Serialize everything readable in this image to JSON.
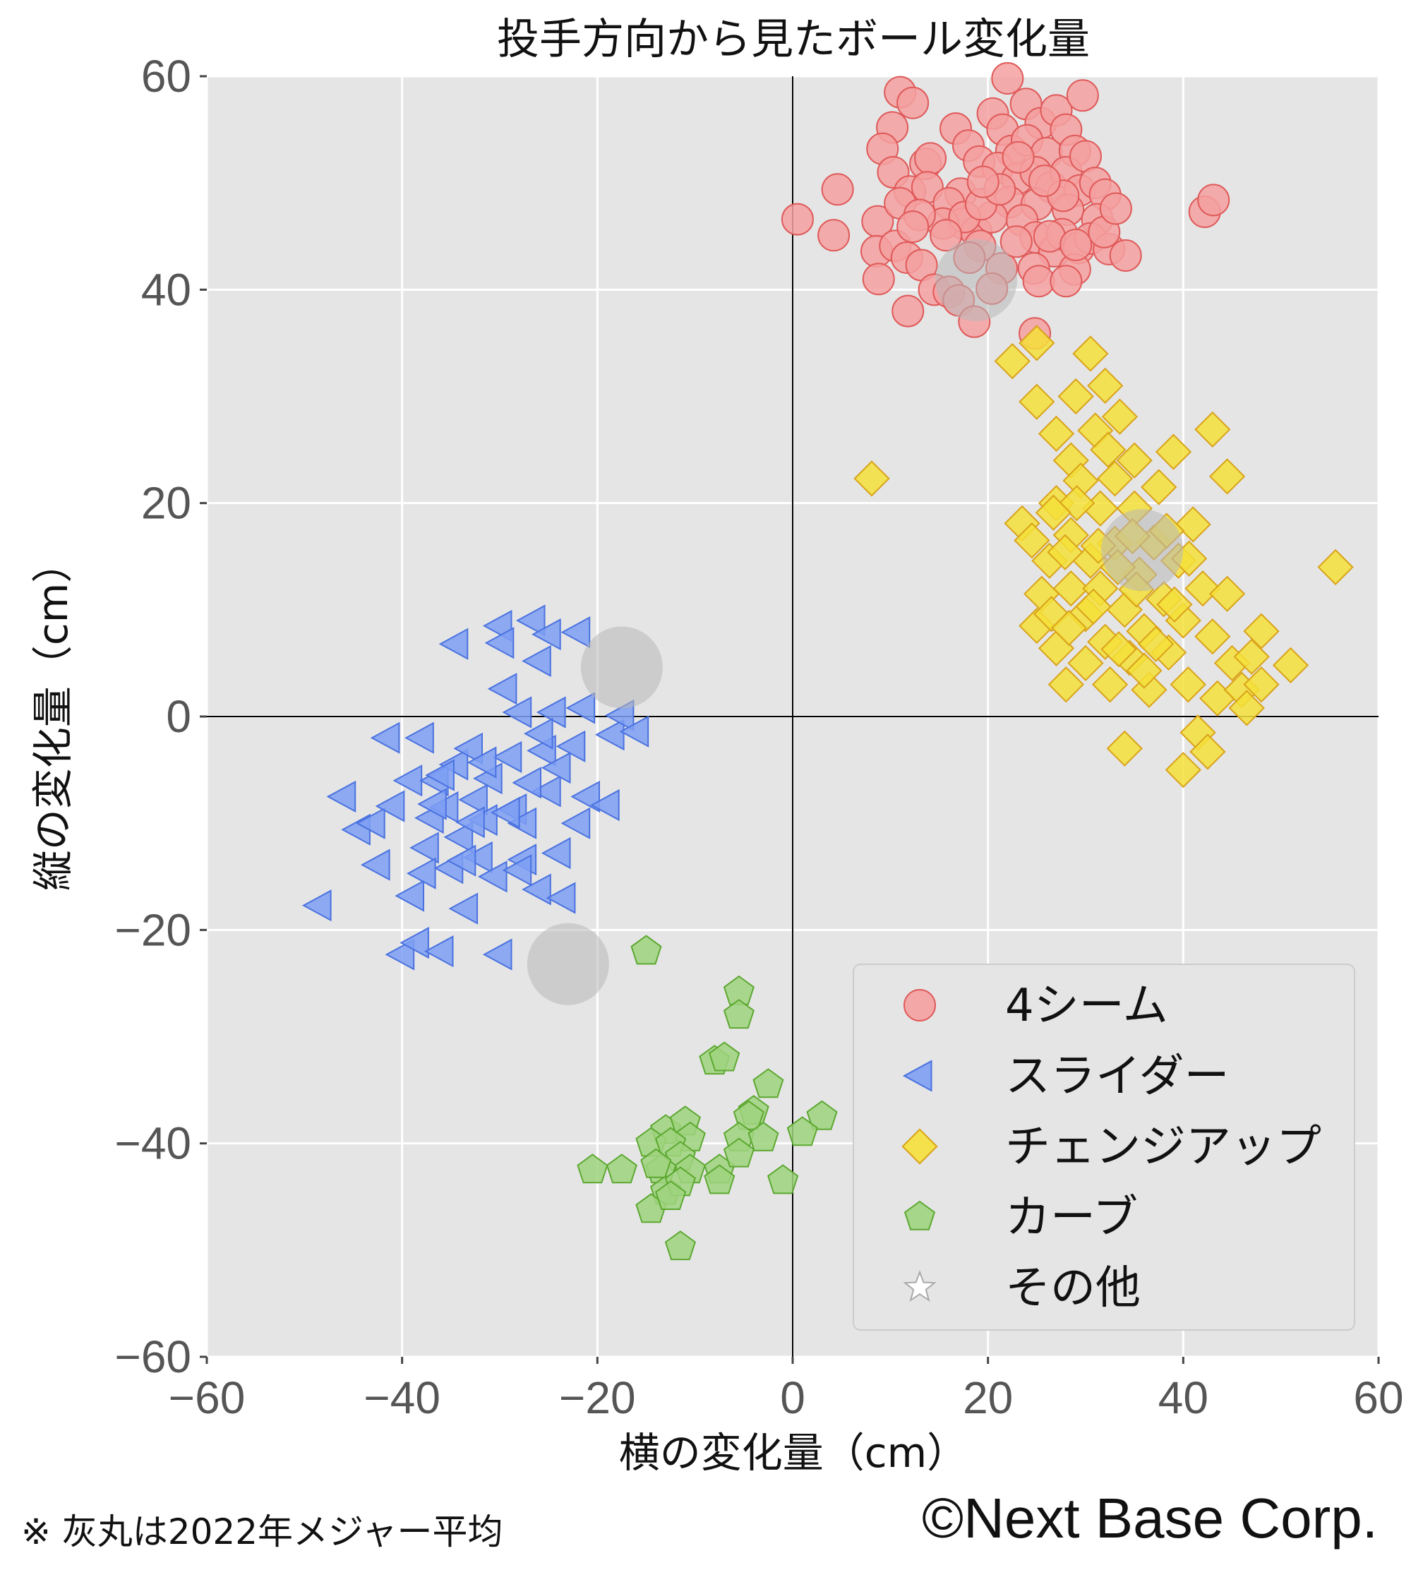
{
  "chart_data": {
    "type": "scatter",
    "title": "投手方向から見たボール変化量",
    "xlabel": "横の変化量（cm）",
    "ylabel": "縦の変化量（cm）",
    "xlim": [
      -60,
      60
    ],
    "ylim": [
      -60,
      60
    ],
    "x_ticks": [
      "−60",
      "−40",
      "−20",
      "0",
      "20",
      "40",
      "60"
    ],
    "y_ticks": [
      "−60",
      "−40",
      "−20",
      "0",
      "20",
      "40",
      "60"
    ],
    "grid": true,
    "legend_position": "lower-right",
    "series": [
      {
        "name": "4シーム",
        "marker": "circle",
        "color": "#f4a0a0",
        "edge": "#e05a5a",
        "points": [
          [
            0.5,
            46.6
          ],
          [
            4.2,
            45.1
          ],
          [
            4.6,
            49.4
          ],
          [
            8.7,
            46.4
          ],
          [
            8.6,
            43.6
          ],
          [
            8.8,
            41.0
          ],
          [
            11.0,
            58.5
          ],
          [
            12.3,
            57.5
          ],
          [
            10.2,
            55.2
          ],
          [
            9.2,
            53.2
          ],
          [
            10.3,
            51.0
          ],
          [
            12.0,
            49.2
          ],
          [
            13.6,
            51.8
          ],
          [
            14.1,
            52.3
          ],
          [
            13.8,
            49.6
          ],
          [
            11.0,
            48.1
          ],
          [
            10.5,
            44.1
          ],
          [
            11.7,
            43.0
          ],
          [
            13.2,
            42.3
          ],
          [
            11.8,
            38.0
          ],
          [
            14.5,
            40.0
          ],
          [
            16.0,
            39.8
          ],
          [
            17.0,
            39.0
          ],
          [
            18.6,
            37.0
          ],
          [
            16.7,
            55.1
          ],
          [
            18.0,
            53.5
          ],
          [
            19.1,
            52.0
          ],
          [
            17.2,
            49.0
          ],
          [
            16.0,
            48.1
          ],
          [
            17.5,
            46.2
          ],
          [
            18.8,
            45.4
          ],
          [
            20.5,
            56.5
          ],
          [
            21.5,
            55.0
          ],
          [
            22.4,
            53.0
          ],
          [
            21.0,
            51.4
          ],
          [
            23.0,
            50.4
          ],
          [
            22.2,
            48.2
          ],
          [
            20.4,
            46.8
          ],
          [
            19.2,
            44.1
          ],
          [
            18.1,
            43.0
          ],
          [
            21.4,
            42.0
          ],
          [
            20.4,
            40.1
          ],
          [
            22.0,
            59.8
          ],
          [
            23.9,
            57.4
          ],
          [
            25.4,
            55.6
          ],
          [
            24.0,
            54.0
          ],
          [
            26.0,
            52.8
          ],
          [
            24.9,
            51.0
          ],
          [
            26.5,
            49.6
          ],
          [
            25.0,
            48.0
          ],
          [
            23.5,
            46.5
          ],
          [
            24.9,
            44.9
          ],
          [
            26.8,
            43.6
          ],
          [
            24.7,
            42.0
          ],
          [
            25.2,
            40.8
          ],
          [
            27.0,
            56.8
          ],
          [
            28.0,
            55.0
          ],
          [
            29.7,
            58.2
          ],
          [
            28.9,
            53.0
          ],
          [
            28.0,
            51.0
          ],
          [
            29.4,
            49.3
          ],
          [
            28.2,
            47.5
          ],
          [
            27.6,
            45.2
          ],
          [
            29.3,
            43.9
          ],
          [
            28.9,
            41.9
          ],
          [
            28.0,
            40.8
          ],
          [
            30.0,
            52.5
          ],
          [
            31.0,
            50.0
          ],
          [
            32.0,
            48.9
          ],
          [
            31.2,
            46.6
          ],
          [
            30.5,
            44.8
          ],
          [
            32.4,
            43.8
          ],
          [
            31.9,
            45.4
          ],
          [
            33.1,
            47.6
          ],
          [
            34.1,
            43.2
          ],
          [
            42.2,
            47.3
          ],
          [
            43.1,
            48.4
          ],
          [
            24.8,
            35.9
          ],
          [
            15.4,
            46.2
          ],
          [
            17.6,
            46.8
          ],
          [
            19.3,
            48.0
          ],
          [
            22.9,
            44.5
          ],
          [
            26.3,
            45.0
          ],
          [
            27.7,
            48.8
          ],
          [
            21.2,
            49.4
          ],
          [
            13.0,
            47.0
          ],
          [
            15.7,
            45.1
          ],
          [
            12.3,
            45.9
          ],
          [
            23.1,
            52.4
          ],
          [
            19.5,
            50.1
          ],
          [
            25.8,
            50.2
          ],
          [
            29.0,
            44.2
          ]
        ]
      },
      {
        "name": "スライダー",
        "marker": "triangle-left",
        "color": "#7e9ff3",
        "edge": "#4a72e0",
        "points": [
          [
            -48.5,
            -17.7
          ],
          [
            -46.0,
            -7.5
          ],
          [
            -44.5,
            -10.6
          ],
          [
            -43.0,
            -10.0
          ],
          [
            -42.5,
            -13.9
          ],
          [
            -41.5,
            -2.0
          ],
          [
            -41.0,
            -8.4
          ],
          [
            -40.0,
            -22.3
          ],
          [
            -39.0,
            -16.8
          ],
          [
            -38.5,
            -21.2
          ],
          [
            -39.2,
            -6.0
          ],
          [
            -38.0,
            -2.0
          ],
          [
            -37.0,
            -9.5
          ],
          [
            -37.5,
            -12.3
          ],
          [
            -36.0,
            -22.0
          ],
          [
            -36.5,
            -6.0
          ],
          [
            -35.5,
            -8.5
          ],
          [
            -35.0,
            -14.2
          ],
          [
            -34.5,
            -4.5
          ],
          [
            -34.0,
            -11.3
          ],
          [
            -33.5,
            -18.0
          ],
          [
            -34.5,
            6.8
          ],
          [
            -33.0,
            -3.0
          ],
          [
            -32.5,
            -7.8
          ],
          [
            -32.0,
            -13.2
          ],
          [
            -31.5,
            -9.7
          ],
          [
            -31.0,
            -5.8
          ],
          [
            -30.5,
            -15.0
          ],
          [
            -30.0,
            8.5
          ],
          [
            -30.0,
            -22.3
          ],
          [
            -29.8,
            6.9
          ],
          [
            -29.5,
            2.6
          ],
          [
            -29.0,
            -3.8
          ],
          [
            -28.5,
            -8.7
          ],
          [
            -28.0,
            0.4
          ],
          [
            -27.5,
            -10.0
          ],
          [
            -27.5,
            -13.4
          ],
          [
            -26.6,
            9.0
          ],
          [
            -26.0,
            5.2
          ],
          [
            -26.0,
            -16.2
          ],
          [
            -25.5,
            -3.2
          ],
          [
            -25.0,
            -7.0
          ],
          [
            -25.0,
            7.7
          ],
          [
            -24.5,
            0.4
          ],
          [
            -24.0,
            -4.8
          ],
          [
            -24.0,
            -12.8
          ],
          [
            -23.5,
            -17.0
          ],
          [
            -22.5,
            -2.8
          ],
          [
            -22.0,
            7.9
          ],
          [
            -22.0,
            -10.0
          ],
          [
            -21.5,
            0.8
          ],
          [
            -21.0,
            -7.5
          ],
          [
            -19.0,
            -8.3
          ],
          [
            -18.5,
            -1.7
          ],
          [
            -17.5,
            0.1
          ],
          [
            -16.0,
            -1.4
          ],
          [
            -36.7,
            -8.2
          ],
          [
            -33.7,
            -13.5
          ],
          [
            -31.6,
            -4.3
          ],
          [
            -29.2,
            -9.0
          ],
          [
            -28.0,
            -14.4
          ],
          [
            -27.0,
            -6.2
          ],
          [
            -25.8,
            -1.6
          ],
          [
            -35.9,
            -5.5
          ],
          [
            -37.8,
            -14.7
          ],
          [
            -32.8,
            -9.9
          ]
        ]
      },
      {
        "name": "チェンジアップ",
        "marker": "diamond",
        "color": "#f5e03a",
        "edge": "#d9a21a",
        "points": [
          [
            8.1,
            22.3
          ],
          [
            22.5,
            33.3
          ],
          [
            25.0,
            35.0
          ],
          [
            25.0,
            29.5
          ],
          [
            23.5,
            18.1
          ],
          [
            24.5,
            16.5
          ],
          [
            25.5,
            11.5
          ],
          [
            25.0,
            8.5
          ],
          [
            26.3,
            14.6
          ],
          [
            26.5,
            9.6
          ],
          [
            27.0,
            20.0
          ],
          [
            27.0,
            26.5
          ],
          [
            27.0,
            6.4
          ],
          [
            28.0,
            3.0
          ],
          [
            28.5,
            12.0
          ],
          [
            28.5,
            17.0
          ],
          [
            28.5,
            24.0
          ],
          [
            29.0,
            30.0
          ],
          [
            29.5,
            22.1
          ],
          [
            30.0,
            9.6
          ],
          [
            30.0,
            5.0
          ],
          [
            30.5,
            14.6
          ],
          [
            30.5,
            34.0
          ],
          [
            31.0,
            26.8
          ],
          [
            31.5,
            19.5
          ],
          [
            31.5,
            12.0
          ],
          [
            32.0,
            7.0
          ],
          [
            32.0,
            31.0
          ],
          [
            32.5,
            3.0
          ],
          [
            33.0,
            16.2
          ],
          [
            33.0,
            22.3
          ],
          [
            33.5,
            28.1
          ],
          [
            34.0,
            10.0
          ],
          [
            34.0,
            -3.0
          ],
          [
            34.5,
            5.5
          ],
          [
            35.0,
            19.5
          ],
          [
            35.0,
            24.0
          ],
          [
            35.5,
            13.3
          ],
          [
            36.0,
            8.0
          ],
          [
            36.5,
            2.5
          ],
          [
            37.0,
            16.3
          ],
          [
            37.5,
            21.5
          ],
          [
            38.0,
            11.0
          ],
          [
            38.5,
            6.0
          ],
          [
            39.0,
            24.8
          ],
          [
            39.5,
            14.6
          ],
          [
            40.0,
            -5.0
          ],
          [
            40.0,
            9.0
          ],
          [
            40.5,
            3.0
          ],
          [
            41.0,
            18.0
          ],
          [
            41.5,
            -1.5
          ],
          [
            42.0,
            12.0
          ],
          [
            42.5,
            -3.3
          ],
          [
            43.0,
            26.9
          ],
          [
            43.0,
            7.5
          ],
          [
            43.5,
            1.7
          ],
          [
            44.5,
            22.5
          ],
          [
            44.5,
            11.5
          ],
          [
            45.0,
            5.0
          ],
          [
            46.0,
            2.5
          ],
          [
            46.5,
            0.8
          ],
          [
            47.0,
            5.6
          ],
          [
            48.0,
            3.0
          ],
          [
            48.0,
            8.0
          ],
          [
            51.0,
            4.8
          ],
          [
            55.6,
            14.0
          ],
          [
            29.1,
            20.0
          ],
          [
            31.3,
            16.0
          ],
          [
            33.3,
            14.0
          ],
          [
            35.2,
            11.9
          ],
          [
            37.2,
            6.8
          ],
          [
            39.1,
            10.5
          ],
          [
            30.8,
            10.3
          ],
          [
            27.9,
            15.4
          ],
          [
            33.4,
            6.3
          ],
          [
            36.0,
            4.3
          ],
          [
            32.3,
            25.0
          ],
          [
            26.7,
            19.1
          ],
          [
            38.3,
            17.4
          ],
          [
            40.6,
            14.8
          ],
          [
            28.3,
            8.3
          ],
          [
            34.8,
            16.9
          ]
        ]
      },
      {
        "name": "カーブ",
        "marker": "pentagon",
        "color": "#9fd47e",
        "edge": "#5ca830",
        "points": [
          [
            -15.0,
            -22.0
          ],
          [
            -5.5,
            -25.8
          ],
          [
            -5.5,
            -28.0
          ],
          [
            -8.0,
            -32.3
          ],
          [
            -7.0,
            -32.0
          ],
          [
            -2.5,
            -34.5
          ],
          [
            3.0,
            -37.5
          ],
          [
            -13.0,
            -38.8
          ],
          [
            -11.0,
            -38.0
          ],
          [
            -4.0,
            -37.0
          ],
          [
            -4.5,
            -37.5
          ],
          [
            -10.5,
            -39.5
          ],
          [
            -14.5,
            -40.0
          ],
          [
            -12.5,
            -40.0
          ],
          [
            -5.5,
            -39.5
          ],
          [
            -3.0,
            -39.5
          ],
          [
            1.0,
            -39.0
          ],
          [
            -11.5,
            -41.3
          ],
          [
            -10.5,
            -42.5
          ],
          [
            -13.5,
            -42.5
          ],
          [
            -7.5,
            -42.5
          ],
          [
            -5.5,
            -41.0
          ],
          [
            -17.5,
            -42.5
          ],
          [
            -20.5,
            -42.5
          ],
          [
            -13.0,
            -44.5
          ],
          [
            -7.5,
            -43.5
          ],
          [
            -1.0,
            -43.5
          ],
          [
            -11.5,
            -43.7
          ],
          [
            -14.5,
            -46.2
          ],
          [
            -12.5,
            -45.0
          ],
          [
            -11.5,
            -49.7
          ],
          [
            -14.0,
            -42.0
          ]
        ]
      },
      {
        "name": "その他",
        "marker": "star",
        "color": "#ffffff",
        "edge": "#aaaaaa",
        "points": []
      }
    ],
    "league_average": [
      {
        "x": 18.8,
        "y": 40.9
      },
      {
        "x": 35.8,
        "y": 15.6
      },
      {
        "x": -17.5,
        "y": 4.6
      },
      {
        "x": -23.0,
        "y": -23.2
      }
    ]
  },
  "footer": {
    "note": "※ 灰丸は2022年メジャー平均",
    "copyright": "©Next Base Corp."
  }
}
